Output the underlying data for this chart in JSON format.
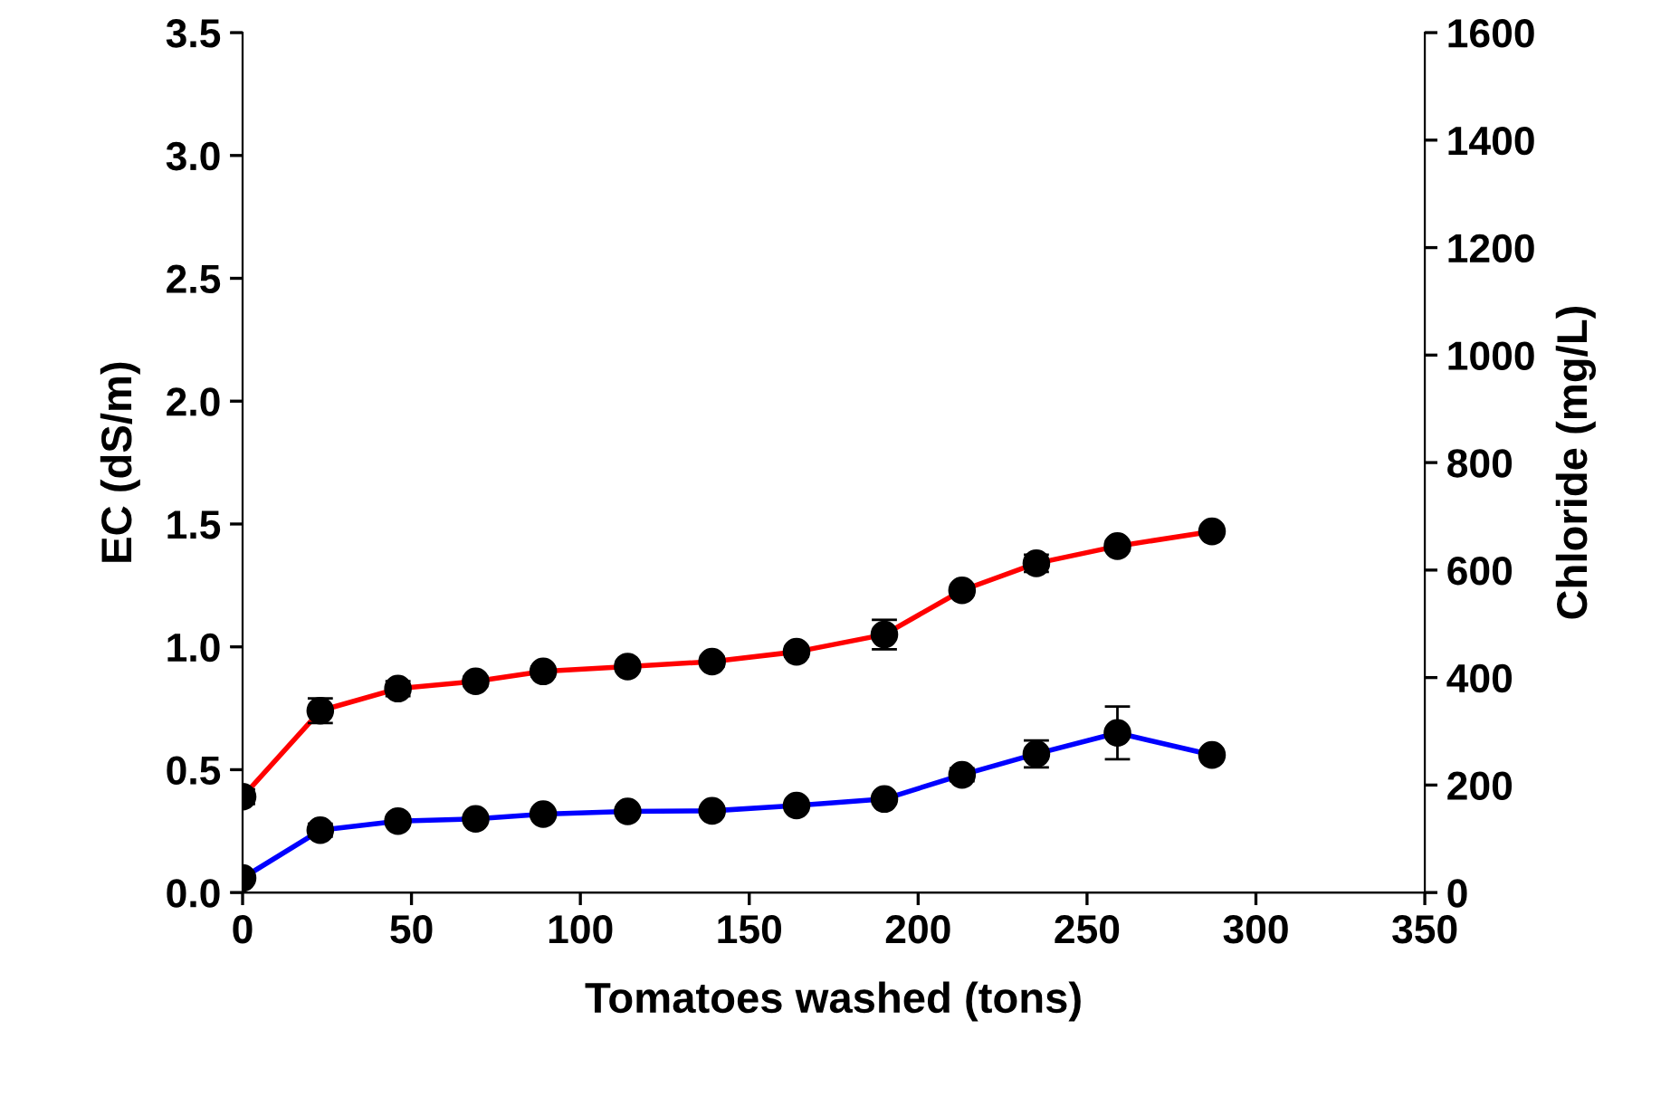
{
  "chart_data": {
    "type": "line",
    "xlabel": "Tomatoes washed (tons)",
    "ylabel": "EC (dS/m)",
    "y2label": "Chloride (mg/L)",
    "xlim": [
      0,
      350
    ],
    "xticks": [
      0,
      50,
      100,
      150,
      200,
      250,
      300,
      350
    ],
    "ylim": [
      0,
      3.5
    ],
    "yticks": [
      {
        "value": 0,
        "label": "0.0"
      },
      {
        "value": 0.5,
        "label": "0.5"
      },
      {
        "value": 1,
        "label": "1.0"
      },
      {
        "value": 1.5,
        "label": "1.5"
      },
      {
        "value": 2,
        "label": "2.0"
      },
      {
        "value": 2.5,
        "label": "2.5"
      },
      {
        "value": 3,
        "label": "3.0"
      },
      {
        "value": 3.5,
        "label": "3.5"
      }
    ],
    "y2lim": [
      0,
      1600
    ],
    "y2ticks": [
      0,
      200,
      400,
      600,
      800,
      1000,
      1200,
      1400,
      1600
    ],
    "marker": "circle",
    "grid": false,
    "legend": false,
    "series": [
      {
        "color": "#ff0000",
        "x": [
          0,
          23,
          46,
          69,
          89,
          114,
          139,
          164,
          190,
          213,
          235,
          259,
          287
        ],
        "values": [
          0.39,
          0.74,
          0.83,
          0.86,
          0.9,
          0.92,
          0.94,
          0.98,
          1.05,
          1.23,
          1.34,
          1.41,
          1.47
        ],
        "errors": [
          0.03,
          0.05,
          0.03,
          0.02,
          0.02,
          0.02,
          0.02,
          0.02,
          0.06,
          0.02,
          0.035,
          0.02,
          null
        ]
      },
      {
        "color": "#0000ff",
        "axis": "y2",
        "x": [
          0,
          23,
          46,
          69,
          89,
          114,
          139,
          164,
          190,
          213,
          235,
          259,
          287
        ],
        "values": [
          27,
          116,
          133,
          137,
          146,
          151,
          152,
          162,
          174,
          219,
          258,
          297,
          256
        ],
        "errors": [
          null,
          12,
          8,
          null,
          null,
          null,
          null,
          null,
          null,
          12,
          25,
          49,
          null
        ]
      }
    ]
  }
}
